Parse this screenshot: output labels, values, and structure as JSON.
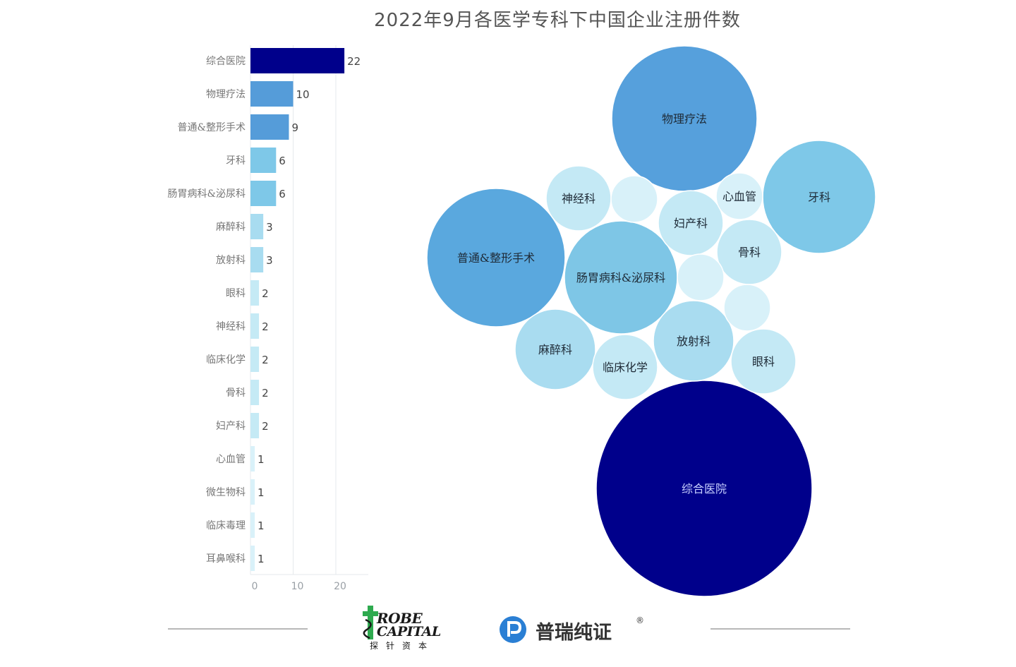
{
  "chart_data": [
    {
      "type": "bar",
      "orientation": "horizontal",
      "title": "2022年9月各医学专科下中国企业注册件数",
      "categories": [
        "综合医院",
        "物理疗法",
        "普通&整形手术",
        "牙科",
        "肠胃病科&泌尿科",
        "麻醉科",
        "放射科",
        "眼科",
        "神经科",
        "临床化学",
        "骨科",
        "妇产科",
        "心血管",
        "微生物科",
        "临床毒理",
        "耳鼻喉科"
      ],
      "values": [
        22,
        10,
        9,
        6,
        6,
        3,
        3,
        2,
        2,
        2,
        2,
        2,
        1,
        1,
        1,
        1
      ],
      "xticks": [
        "0",
        "10",
        "20"
      ],
      "xlim": [
        0,
        27
      ],
      "grid": true,
      "colors": [
        "#00008b",
        "#559cd9",
        "#559cd9",
        "#7ec8e8",
        "#7ec8e8",
        "#a8dcf0",
        "#a8dcf0",
        "#c5eaf5",
        "#c5eaf5",
        "#c5eaf5",
        "#c5eaf5",
        "#c5eaf5",
        "#d9f1f9",
        "#d9f1f9",
        "#d9f1f9",
        "#d9f1f9"
      ]
    },
    {
      "type": "bubble",
      "bubbles": [
        {
          "name": "综合医院",
          "value": 22,
          "color": "#00008b",
          "text_color": "#c8d0ff"
        },
        {
          "name": "物理疗法",
          "value": 10,
          "color": "#56a0dc",
          "text_color": "#1e2a36"
        },
        {
          "name": "普通&整形手术",
          "value": 9,
          "color": "#5aa8de",
          "text_color": "#1e2a36"
        },
        {
          "name": "牙科",
          "value": 6,
          "color": "#7ec8e8",
          "text_color": "#1e2a36"
        },
        {
          "name": "肠胃病科&泌尿科",
          "value": 6,
          "color": "#7ec6e6",
          "text_color": "#1e2a36"
        },
        {
          "name": "麻醉科",
          "value": 3,
          "color": "#a9dcf0",
          "text_color": "#1e2a36"
        },
        {
          "name": "放射科",
          "value": 3,
          "color": "#a9dcf0",
          "text_color": "#1e2a36"
        },
        {
          "name": "眼科",
          "value": 2,
          "color": "#c4e9f5",
          "text_color": "#1e2a36"
        },
        {
          "name": "神经科",
          "value": 2,
          "color": "#c4e9f5",
          "text_color": "#1e2a36"
        },
        {
          "name": "临床化学",
          "value": 2,
          "color": "#c4e9f5",
          "text_color": "#1e2a36"
        },
        {
          "name": "骨科",
          "value": 2,
          "color": "#c4e9f5",
          "text_color": "#1e2a36"
        },
        {
          "name": "妇产科",
          "value": 2,
          "color": "#c4e9f5",
          "text_color": "#1e2a36"
        },
        {
          "name": "心血管",
          "value": 1,
          "color": "#d8f1f9",
          "text_color": "#1e2a36"
        },
        {
          "name": "",
          "value": 1,
          "color": "#d8f1f9",
          "text_color": "#1e2a36"
        },
        {
          "name": "",
          "value": 1,
          "color": "#d8f1f9",
          "text_color": "#1e2a36"
        },
        {
          "name": "",
          "value": 1,
          "color": "#d8f1f9",
          "text_color": "#1e2a36"
        }
      ]
    }
  ],
  "footer": {
    "logo_probe": {
      "line1": "ROBE",
      "line2": "CAPITAL",
      "cn": "探针资本",
      "mark_color": "#2eaa4f"
    },
    "logo_pr": {
      "text": "普瑞纯证",
      "reg": "®",
      "mark_color": "#2a7fd4"
    }
  }
}
